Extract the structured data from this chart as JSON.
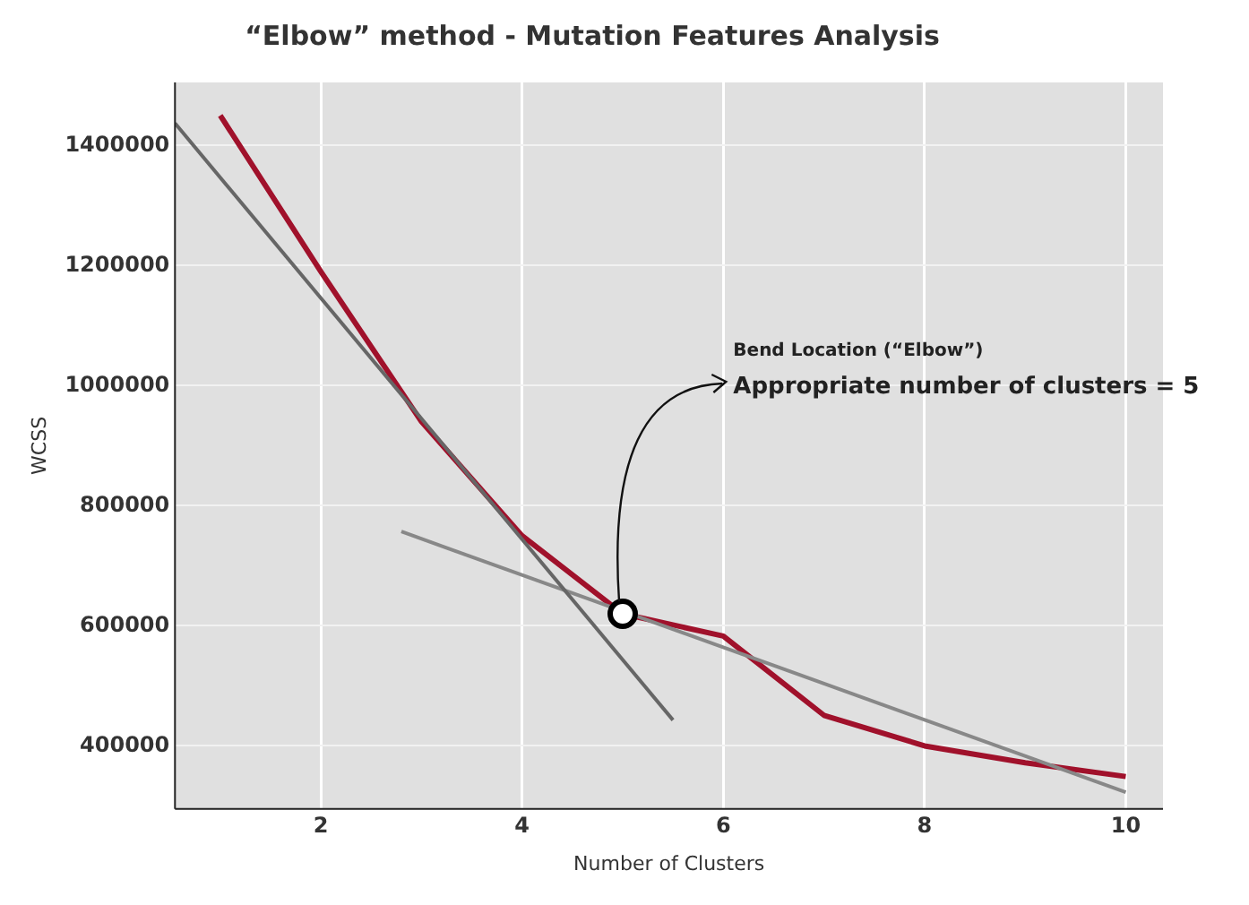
{
  "chart_data": {
    "type": "line",
    "title": "“Elbow” method - Mutation Features Analysis",
    "xlabel": "Number of Clusters",
    "ylabel": "WCSS",
    "xlim": [
      0.55,
      10.37
    ],
    "xticks": [
      2,
      4,
      6,
      8,
      10
    ],
    "ylim": [
      295000,
      1505000
    ],
    "yticks": [
      400000,
      600000,
      800000,
      1000000,
      1200000,
      1400000
    ],
    "grid": true,
    "line_style": "solid",
    "series": [
      {
        "color": "#666666",
        "x": [
          0.55,
          5.5
        ],
        "values": [
          1437000,
          443000
        ]
      },
      {
        "color": "#888888",
        "x": [
          2.8,
          10
        ],
        "values": [
          757000,
          323000
        ]
      },
      {
        "color": "#a0112b",
        "x": [
          1,
          2,
          3,
          4,
          5,
          6,
          7,
          8,
          9,
          10
        ],
        "values": [
          1450000,
          1190000,
          940000,
          750000,
          620000,
          583000,
          451000,
          400000,
          372000,
          349000
        ]
      },
      {
        "type": "scatter",
        "marker": "circle",
        "color": "#000000",
        "x": [
          5
        ],
        "values": [
          620000
        ]
      }
    ],
    "annotations": [
      "Bend Location (“Elbow”)",
      {
        "text": "Appropriate number of clusters = 5",
        "x": 5,
        "y": 620000
      }
    ]
  }
}
